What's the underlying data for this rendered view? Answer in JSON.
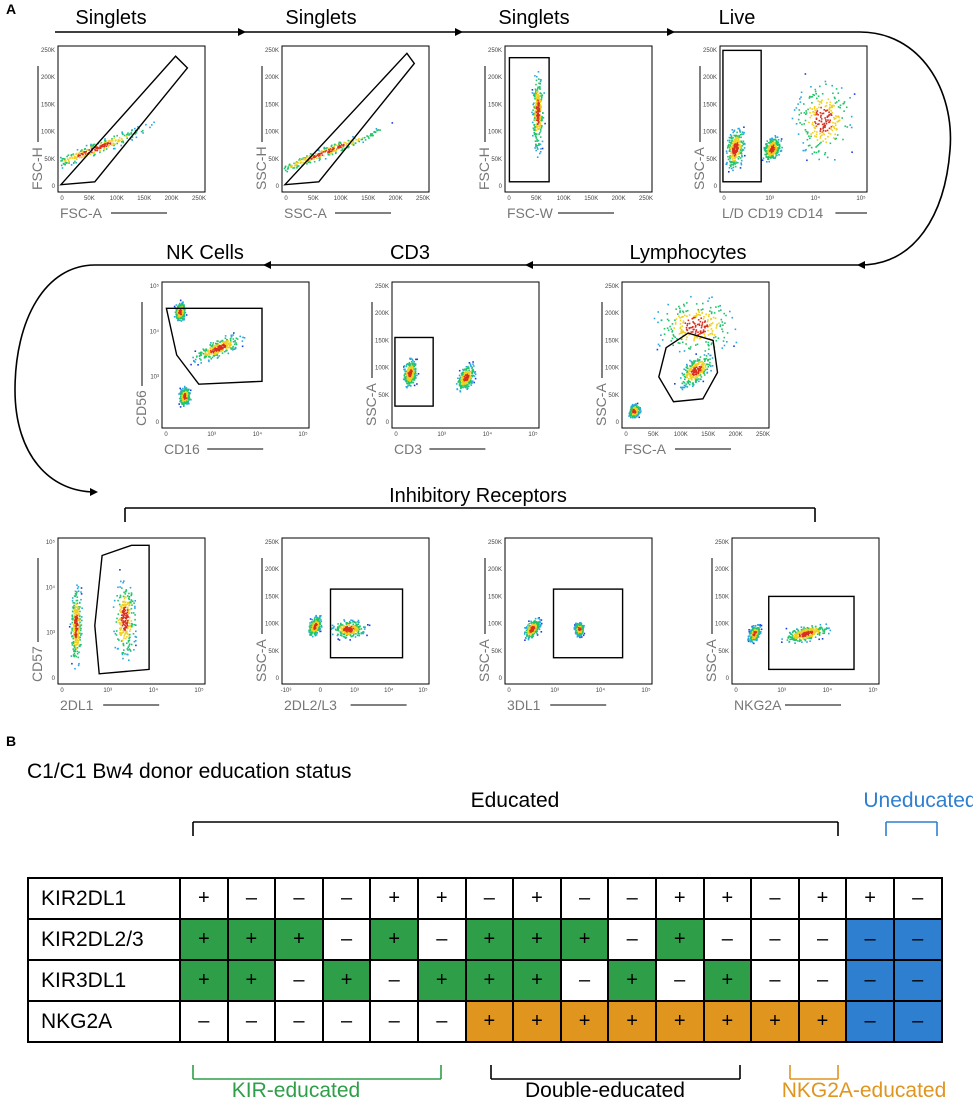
{
  "panel_a": {
    "letter": "A",
    "stages": [
      "Singlets",
      "Singlets",
      "Singlets",
      "Live",
      "Lymphocytes",
      "CD3",
      "NK Cells"
    ],
    "inhibitory_title": "Inhibitory Receptors",
    "plots": [
      {
        "name": "fsc-a-vs-fsc-h",
        "x": "FSC-A",
        "y": "FSC-H",
        "xt": [
          "0",
          "50K",
          "100K",
          "150K",
          "200K",
          "250K"
        ],
        "yt": [
          "0",
          "50K",
          "100K",
          "150K",
          "200K",
          "250K"
        ]
      },
      {
        "name": "ssc-a-vs-ssc-h",
        "x": "SSC-A",
        "y": "SSC-H",
        "xt": [
          "0",
          "50K",
          "100K",
          "150K",
          "200K",
          "250K"
        ],
        "yt": [
          "0",
          "50K",
          "100K",
          "150K",
          "200K",
          "250K"
        ]
      },
      {
        "name": "fsc-w-vs-fsc-h",
        "x": "FSC-W",
        "y": "FSC-H",
        "xt": [
          "0",
          "50K",
          "100K",
          "150K",
          "200K",
          "250K"
        ],
        "yt": [
          "0",
          "50K",
          "100K",
          "150K",
          "200K",
          "250K"
        ]
      },
      {
        "name": "live-dead",
        "x": "L/D CD19 CD14",
        "y": "SSC-A",
        "xt": [
          "0",
          "10³",
          "10⁴",
          "10⁵"
        ],
        "yt": [
          "0",
          "50K",
          "100K",
          "150K",
          "200K",
          "250K"
        ]
      },
      {
        "name": "lymphocytes",
        "x": "FSC-A",
        "y": "SSC-A",
        "xt": [
          "0",
          "50K",
          "100K",
          "150K",
          "200K",
          "250K"
        ],
        "yt": [
          "0",
          "50K",
          "100K",
          "150K",
          "200K",
          "250K"
        ]
      },
      {
        "name": "cd3",
        "x": "CD3",
        "y": "SSC-A",
        "xt": [
          "0",
          "10³",
          "10⁴",
          "10⁵"
        ],
        "yt": [
          "0",
          "50K",
          "100K",
          "150K",
          "200K",
          "250K"
        ]
      },
      {
        "name": "nk-cells",
        "x": "CD16",
        "y": "CD56",
        "xt": [
          "0",
          "10³",
          "10⁴",
          "10⁵"
        ],
        "yt": [
          "0",
          "10³",
          "10⁴",
          "10⁵"
        ]
      },
      {
        "name": "2dl1",
        "x": "2DL1",
        "y": "CD57",
        "xt": [
          "0",
          "10³",
          "10⁴",
          "10⁵"
        ],
        "yt": [
          "0",
          "10³",
          "10⁴",
          "10⁵"
        ]
      },
      {
        "name": "2dl2-l3",
        "x": "2DL2/L3",
        "y": "SSC-A",
        "xt": [
          "-10³",
          "0",
          "10³",
          "10⁴",
          "10⁵"
        ],
        "yt": [
          "0",
          "50K",
          "100K",
          "150K",
          "200K",
          "250K"
        ]
      },
      {
        "name": "3dl1",
        "x": "3DL1",
        "y": "SSC-A",
        "xt": [
          "0",
          "10³",
          "10⁴",
          "10⁵"
        ],
        "yt": [
          "0",
          "50K",
          "100K",
          "150K",
          "200K",
          "250K"
        ]
      },
      {
        "name": "nkg2a",
        "x": "NKG2A",
        "y": "SSC-A",
        "xt": [
          "0",
          "10³",
          "10⁴",
          "10⁵"
        ],
        "yt": [
          "0",
          "50K",
          "100K",
          "150K",
          "200K",
          "250K"
        ]
      }
    ]
  },
  "panel_b": {
    "letter": "B",
    "title": "C1/C1 Bw4 donor education status",
    "educated_label": "Educated",
    "uneducated_label": "Uneducated",
    "bottom_labels": {
      "kir": "KIR-educated",
      "double": "Double-educated",
      "nkg2a": "NKG2A-educated"
    },
    "colors": {
      "green": "#2e9f48",
      "orange": "#e0951f",
      "blue": "#2f7fd0",
      "black": "#000000"
    },
    "rows": [
      {
        "label": "KIR2DL1",
        "cells": [
          "+",
          "–",
          "–",
          "–",
          "+",
          "+",
          "–",
          "+",
          "–",
          "–",
          "+",
          "+",
          "–",
          "+",
          "+",
          "–"
        ],
        "colors": [
          "",
          "",
          "",
          "",
          "",
          "",
          "",
          "",
          "",
          "",
          "",
          "",
          "",
          "",
          "",
          ""
        ]
      },
      {
        "label": "KIR2DL2/3",
        "cells": [
          "+",
          "+",
          "+",
          "–",
          "+",
          "–",
          "+",
          "+",
          "+",
          "–",
          "+",
          "–",
          "–",
          "–",
          "–",
          "–"
        ],
        "colors": [
          "g",
          "g",
          "g",
          "",
          "g",
          "",
          "g",
          "g",
          "g",
          "",
          "g",
          "",
          "",
          "",
          "b",
          "b"
        ]
      },
      {
        "label": "KIR3DL1",
        "cells": [
          "+",
          "+",
          "–",
          "+",
          "–",
          "+",
          "+",
          "+",
          "–",
          "+",
          "–",
          "+",
          "–",
          "–",
          "–",
          "–"
        ],
        "colors": [
          "g",
          "g",
          "",
          "g",
          "",
          "g",
          "g",
          "g",
          "",
          "g",
          "",
          "g",
          "",
          "",
          "b",
          "b"
        ]
      },
      {
        "label": "NKG2A",
        "cells": [
          "–",
          "–",
          "–",
          "–",
          "–",
          "–",
          "+",
          "+",
          "+",
          "+",
          "+",
          "+",
          "+",
          "+",
          "–",
          "–"
        ],
        "colors": [
          "",
          "",
          "",
          "",
          "",
          "",
          "o",
          "o",
          "o",
          "o",
          "o",
          "o",
          "o",
          "o",
          "b",
          "b"
        ]
      }
    ]
  }
}
